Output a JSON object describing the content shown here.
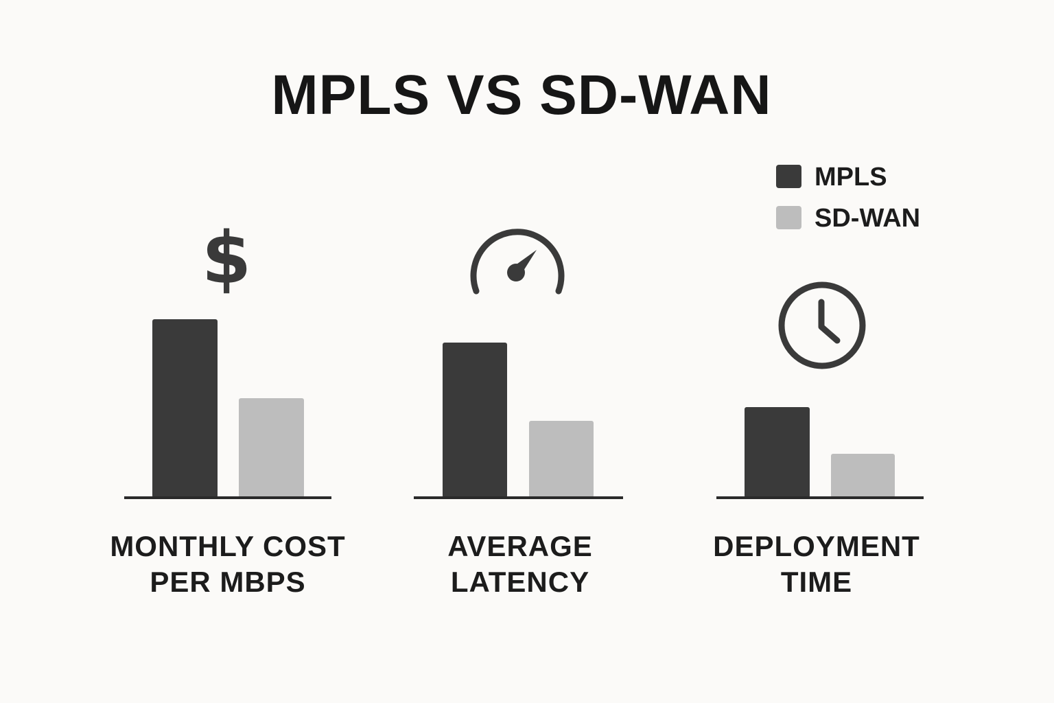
{
  "chart_data": {
    "type": "bar",
    "title": "MPLS VS SD-WAN",
    "categories": [
      {
        "line1": "MONTHLY COST",
        "line2": "PER MBPS",
        "icon": "dollar-icon"
      },
      {
        "line1": "AVERAGE",
        "line2": "LATENCY",
        "icon": "speedometer-icon"
      },
      {
        "line1": "DEPLOYMENT",
        "line2": "TIME",
        "icon": "clock-icon"
      }
    ],
    "series": [
      {
        "name": "MPLS",
        "color": "#3a3a3a",
        "values": [
          260,
          226,
          132
        ]
      },
      {
        "name": "SD-WAN",
        "color": "#bdbdbd",
        "values": [
          145,
          112,
          64
        ]
      }
    ],
    "ylim": [
      0,
      300
    ],
    "grid": false,
    "legend_position": "top-right"
  }
}
